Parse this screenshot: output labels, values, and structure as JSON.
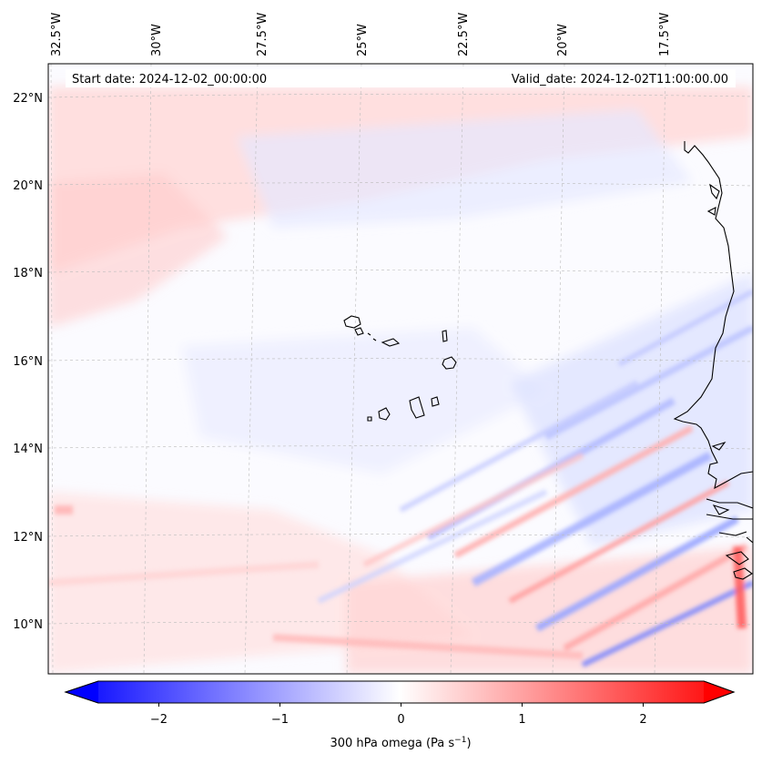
{
  "map": {
    "start_date": "Start date: 2024-12-02_00:00:00",
    "valid_date": "Valid_date: 2024-12-02T11:00:00.00",
    "lon_labels": [
      "32.5°W",
      "30°W",
      "27.5°W",
      "25°W",
      "22.5°W",
      "20°W",
      "17.5°W"
    ],
    "lat_labels": [
      "22°N",
      "20°N",
      "18°N",
      "16°N",
      "14°N",
      "12°N",
      "10°N"
    ],
    "colors": {
      "neg": "#0000ff",
      "zero": "#ffffff",
      "pos": "#ff0000",
      "coast": "#000000",
      "grid": "#bbbbbb"
    }
  },
  "colorbar": {
    "label": "300 hPa omega (Pa s",
    "label_sup": "−1",
    "label_close": ")",
    "min": -2.7,
    "max": 2.7,
    "ticks": [
      {
        "value": -2,
        "label": "−2"
      },
      {
        "value": -1,
        "label": "−1"
      },
      {
        "value": 0,
        "label": "0"
      },
      {
        "value": 1,
        "label": "1"
      },
      {
        "value": 2,
        "label": "2"
      }
    ]
  }
}
